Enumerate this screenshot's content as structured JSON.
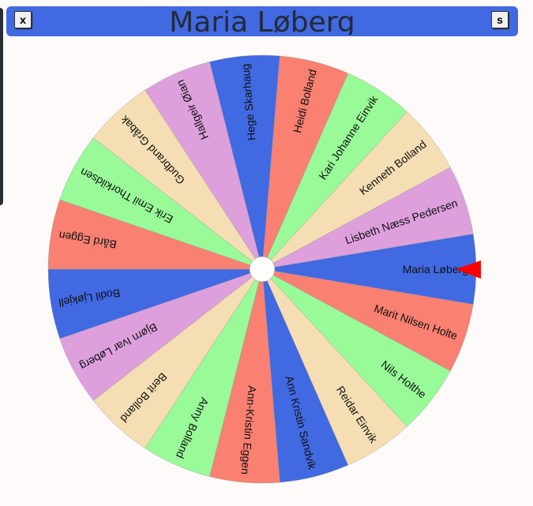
{
  "header": {
    "title": "Maria Løberg",
    "close_label": "x",
    "s_label": "s",
    "background": "#4169e1"
  },
  "wheel": {
    "colors": [
      "#4169e1",
      "#fa8072",
      "#98fb98",
      "#f5deb3",
      "#dda0dd"
    ],
    "pointer_color": "#ff0000",
    "selected": "Maria Løberg",
    "names": [
      "Ann Kristin Sandvik",
      "Ann-Kristin Eggen",
      "Anny Bolland",
      "Berit Bolland",
      "Bjørn Ivar Løberg",
      "Bodil Ljøkjell",
      "Bård Eggen",
      "Erik Emil Thorkildsen",
      "Gudbrand Gråbak",
      "Hallgeir Øian",
      "Hege Skarhaug",
      "Heidi Bolland",
      "Kari Johanne Einvik",
      "Kenneth Bolland",
      "Lisbeth Næss Pedersen",
      "Maria Løberg",
      "Marit Nilsen Holte",
      "Nils Holthe",
      "Reidar Einvik"
    ]
  }
}
